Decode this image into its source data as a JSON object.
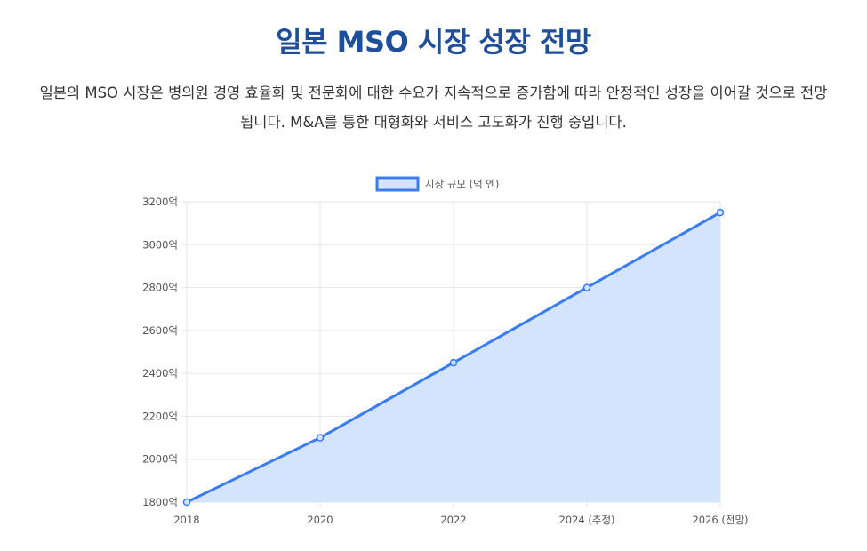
{
  "header": {
    "title": "일본 MSO 시장 성장 전망",
    "description": "일본의 MSO 시장은 병의원 경영 효율화 및 전문화에 대한 수요가 지속적으로 증가함에 따라 안정적인 성장을 이어갈 것으로 전망됩니다. M&A를 통한 대형화와 서비스 고도화가 진행 중입니다."
  },
  "chart_data": {
    "type": "area",
    "categories": [
      "2018",
      "2020",
      "2022",
      "2024 (추정)",
      "2026 (전망)"
    ],
    "series": [
      {
        "name": "시장 규모 (억 엔)",
        "values": [
          1800,
          2100,
          2450,
          2800,
          3150
        ]
      }
    ],
    "ylim": [
      1800,
      3200
    ],
    "yticks": [
      1800,
      2000,
      2200,
      2400,
      2600,
      2800,
      3000,
      3200
    ],
    "ytick_suffix": "억",
    "legend_position": "top-center",
    "grid": true,
    "colors": {
      "line": "#3b7cf2",
      "fill": "#d3e3fd",
      "grid": "#e6e6e6"
    }
  }
}
